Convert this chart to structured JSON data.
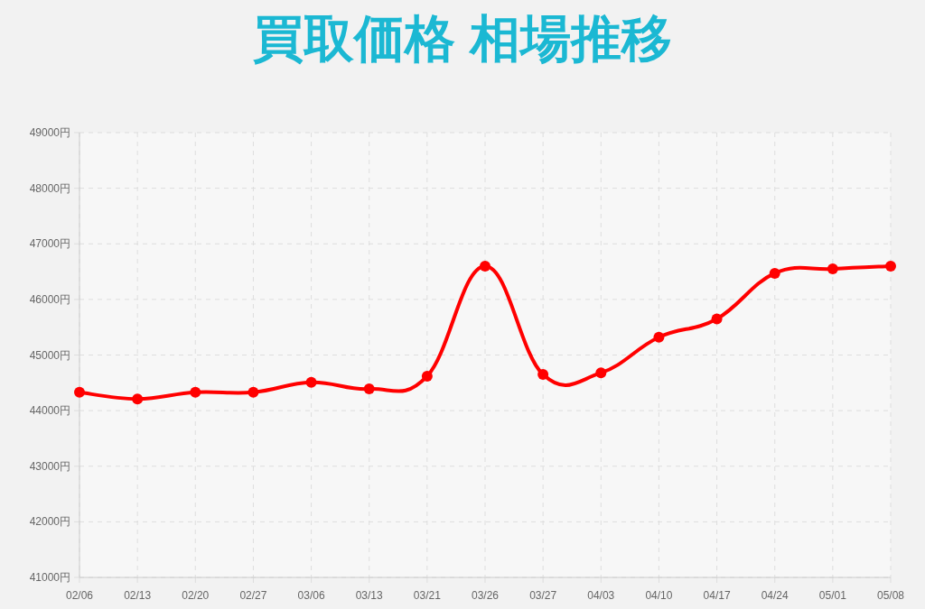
{
  "chart_data": {
    "type": "line",
    "title": "買取価格 相場推移",
    "categories": [
      "02/06",
      "02/13",
      "02/20",
      "02/27",
      "03/06",
      "03/13",
      "03/21",
      "03/26",
      "03/27",
      "04/03",
      "04/10",
      "04/17",
      "04/24",
      "05/01",
      "05/08"
    ],
    "series": [
      {
        "color": "#ff0000",
        "values": [
          44330,
          44210,
          44330,
          44330,
          44510,
          44390,
          44620,
          46600,
          44650,
          44680,
          45320,
          45650,
          46470,
          46550,
          46600
        ]
      }
    ],
    "ylim": [
      41000,
      49000
    ],
    "yticks": [
      {
        "value": 41000,
        "label": "41000円"
      },
      {
        "value": 42000,
        "label": "42000円"
      },
      {
        "value": 43000,
        "label": "43000円"
      },
      {
        "value": 44000,
        "label": "44000円"
      },
      {
        "value": 45000,
        "label": "45000円"
      },
      {
        "value": 46000,
        "label": "46000円"
      },
      {
        "value": 47000,
        "label": "47000円"
      },
      {
        "value": 48000,
        "label": "48000円"
      },
      {
        "value": 49000,
        "label": "49000円"
      }
    ],
    "grid": true,
    "marker": "circle",
    "line_style": "solid"
  }
}
